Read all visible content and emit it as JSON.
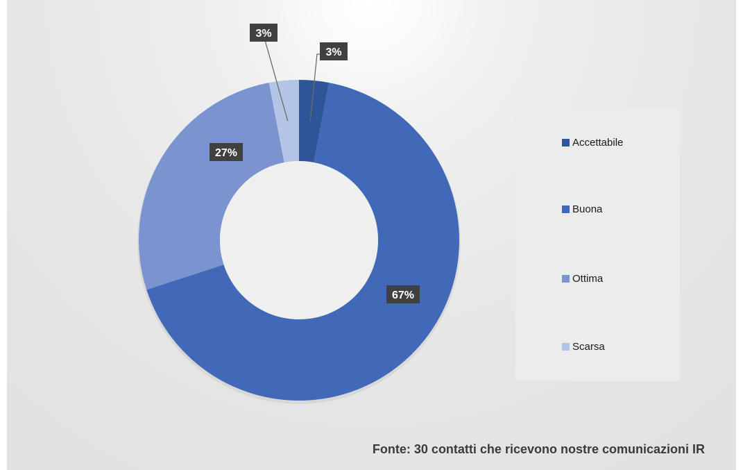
{
  "chart_data": {
    "type": "pie",
    "subtype": "donut",
    "categories": [
      "Accettabile",
      "Buona",
      "Ottima",
      "Scarsa"
    ],
    "values": [
      3,
      67,
      27,
      3
    ],
    "value_labels": [
      "3%",
      "67%",
      "27%",
      "3%"
    ],
    "colors": [
      "#2e5597",
      "#4169b8",
      "#7b93cf",
      "#b4c4e6"
    ],
    "legend_position": "right",
    "source_note": "Fonte: 30 contatti che ricevono nostre comunicazioni IR"
  }
}
